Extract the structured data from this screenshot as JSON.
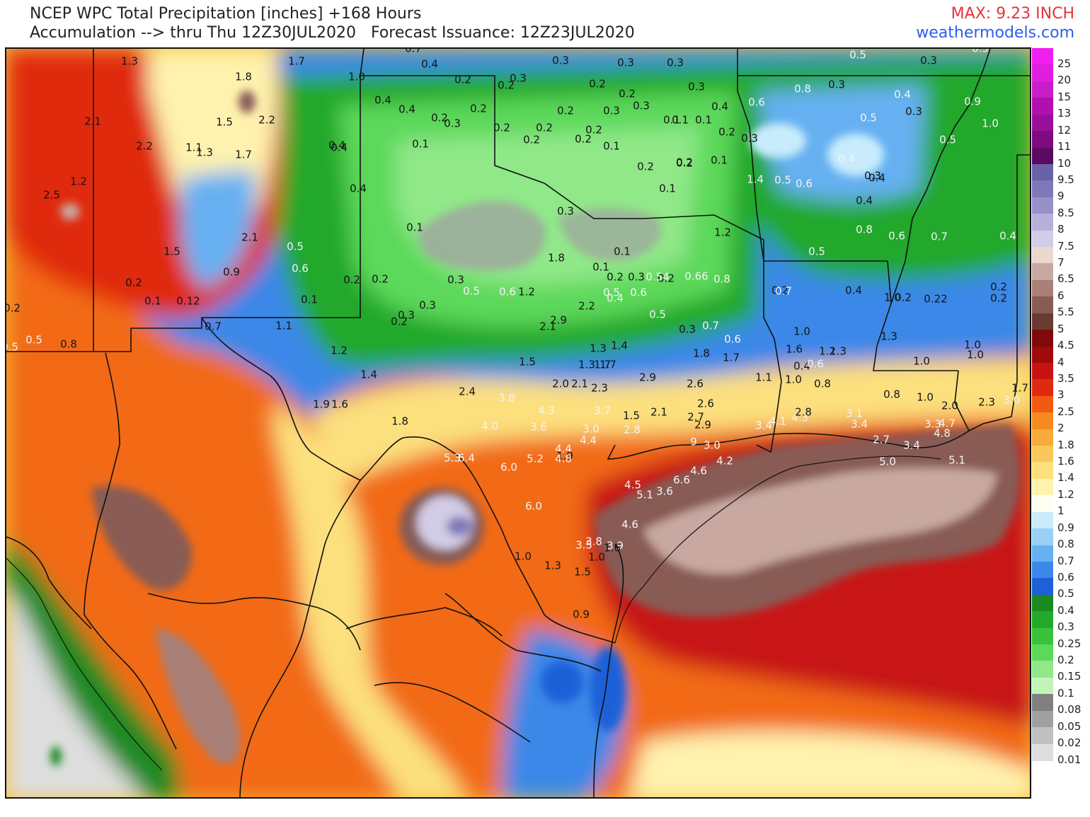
{
  "header": {
    "title_line1": "NCEP WPC Total Precipitation [inches] +168 Hours",
    "title_line2": "Accumulation --> thru Thu 12Z30JUL2020   Forecast Issuance: 12Z23JUL2020",
    "max": "MAX: 9.23 INCH",
    "site": "weathermodels.com"
  },
  "colorbar": {
    "levels": [
      "25",
      "20",
      "15",
      "13",
      "12",
      "11",
      "10",
      "9.5",
      "9",
      "8.5",
      "8",
      "7.5",
      "7",
      "6.5",
      "6",
      "5.5",
      "5",
      "4.5",
      "4",
      "3.5",
      "3",
      "2.5",
      "2",
      "1.8",
      "1.6",
      "1.4",
      "1.2",
      "1",
      "0.9",
      "0.8",
      "0.7",
      "0.6",
      "0.5",
      "0.4",
      "0.3",
      "0.25",
      "0.2",
      "0.15",
      "0.1",
      "0.08",
      "0.05",
      "0.02",
      "0.01"
    ],
    "colors": [
      "#f01ef0",
      "#e01ee0",
      "#c81ec8",
      "#b010b0",
      "#98109a",
      "#800a80",
      "#5a0a60",
      "#6a62a8",
      "#7e78b8",
      "#9890c8",
      "#b6b0da",
      "#d2cce6",
      "#ead8d0",
      "#c8a8a0",
      "#a88078",
      "#885c54",
      "#6a3a32",
      "#7e0a0a",
      "#a00a0a",
      "#c81212",
      "#e02a10",
      "#f25a10",
      "#f68a1e",
      "#f8aa3a",
      "#fac85a",
      "#fce07e",
      "#fff2ae",
      "#fffff0",
      "#c8ecfc",
      "#98d0f8",
      "#66b0f2",
      "#3a88e8",
      "#1e60d8",
      "#1a8a20",
      "#24a82a",
      "#38c23a",
      "#5cd85a",
      "#90e888",
      "#c2f4b8",
      "#808080",
      "#a0a0a0",
      "#c0c0c0",
      "#dedede"
    ]
  },
  "precip_labels": [
    {
      "t": "1.3",
      "c": "dark"
    },
    {
      "t": "1.8",
      "c": "dark"
    },
    {
      "t": "1.7",
      "c": "dark"
    },
    {
      "t": "0.7",
      "c": "dark"
    },
    {
      "t": "1.0",
      "c": "dark"
    },
    {
      "t": "0.4",
      "c": "dark"
    },
    {
      "t": "0.2",
      "c": "dark"
    },
    {
      "t": "0.3",
      "c": "dark"
    },
    {
      "t": "0.2",
      "c": "dark"
    },
    {
      "t": "0.3",
      "c": "dark"
    },
    {
      "t": "0.2",
      "c": "dark"
    },
    {
      "t": "0.3",
      "c": "dark"
    },
    {
      "t": "0.3",
      "c": "dark"
    },
    {
      "t": "0.3",
      "c": "dark"
    },
    {
      "t": "0.5",
      "c": "light"
    },
    {
      "t": "0.3",
      "c": "dark"
    },
    {
      "t": "0.5",
      "c": "light"
    },
    {
      "t": "2.1",
      "c": "dark"
    },
    {
      "t": "1.5",
      "c": "dark"
    },
    {
      "t": "2.2",
      "c": "dark"
    },
    {
      "t": "2.2",
      "c": "dark"
    },
    {
      "t": "1.1",
      "c": "dark"
    },
    {
      "t": "1.3",
      "c": "dark"
    },
    {
      "t": "1.7",
      "c": "dark"
    },
    {
      "t": "0.4",
      "c": "dark"
    },
    {
      "t": "0.4",
      "c": "dark"
    },
    {
      "t": "0.2",
      "c": "dark"
    },
    {
      "t": "0.3",
      "c": "dark"
    },
    {
      "t": "0.2",
      "c": "dark"
    },
    {
      "t": "0.1",
      "c": "dark"
    },
    {
      "t": "0.2",
      "c": "dark"
    },
    {
      "t": "0.2",
      "c": "dark"
    },
    {
      "t": "0.2",
      "c": "dark"
    },
    {
      "t": "0.3",
      "c": "dark"
    },
    {
      "t": "0.2",
      "c": "dark"
    },
    {
      "t": "0.3",
      "c": "dark"
    },
    {
      "t": "0.1",
      "c": "dark"
    },
    {
      "t": "0.1",
      "c": "dark"
    },
    {
      "t": "0.4",
      "c": "dark"
    },
    {
      "t": "0.2",
      "c": "dark"
    },
    {
      "t": "0.3",
      "c": "dark"
    },
    {
      "t": "0.6",
      "c": "light"
    },
    {
      "t": "0.8",
      "c": "light"
    },
    {
      "t": "0.3",
      "c": "dark"
    },
    {
      "t": "0.4",
      "c": "light"
    },
    {
      "t": "0.9",
      "c": "light"
    },
    {
      "t": "1.0",
      "c": "light"
    },
    {
      "t": "0.3",
      "c": "dark"
    },
    {
      "t": "0.5",
      "c": "light"
    },
    {
      "t": "0.5",
      "c": "light"
    },
    {
      "t": "2.5",
      "c": "dark"
    },
    {
      "t": "1.2",
      "c": "dark"
    },
    {
      "t": "0.4",
      "c": "dark"
    },
    {
      "t": "0.4",
      "c": "dark"
    },
    {
      "t": "0.2",
      "c": "dark"
    },
    {
      "t": "0.1",
      "c": "dark"
    },
    {
      "t": "0.2",
      "c": "dark"
    },
    {
      "t": "0.1",
      "c": "dark"
    },
    {
      "t": "0.1",
      "c": "dark"
    },
    {
      "t": "0.2",
      "c": "dark"
    },
    {
      "t": "0.1",
      "c": "dark"
    },
    {
      "t": "0.2",
      "c": "dark"
    },
    {
      "t": "1.4",
      "c": "light"
    },
    {
      "t": "0.5",
      "c": "light"
    },
    {
      "t": "0.6",
      "c": "light"
    },
    {
      "t": "0.4",
      "c": "light"
    },
    {
      "t": "0.3",
      "c": "dark"
    },
    {
      "t": "0.4",
      "c": "dark"
    },
    {
      "t": "0.4",
      "c": "dark"
    },
    {
      "t": "2.1",
      "c": "dark"
    },
    {
      "t": "0.1",
      "c": "dark"
    },
    {
      "t": "0.3",
      "c": "dark"
    },
    {
      "t": "0.4",
      "c": "dark"
    },
    {
      "t": "0.2",
      "c": "dark"
    },
    {
      "t": "0.2",
      "c": "dark"
    },
    {
      "t": "0.8",
      "c": "light"
    },
    {
      "t": "0.6",
      "c": "light"
    },
    {
      "t": "0.7",
      "c": "light"
    },
    {
      "t": "0.4",
      "c": "light"
    },
    {
      "t": "1.5",
      "c": "dark"
    },
    {
      "t": "0.5",
      "c": "light"
    },
    {
      "t": "0.6",
      "c": "light"
    },
    {
      "t": "0.9",
      "c": "dark"
    },
    {
      "t": "0.2",
      "c": "dark"
    },
    {
      "t": "0.2",
      "c": "dark"
    },
    {
      "t": "0.3",
      "c": "dark"
    },
    {
      "t": "0.3",
      "c": "dark"
    },
    {
      "t": "0.5",
      "c": "light"
    },
    {
      "t": "0.6",
      "c": "light"
    },
    {
      "t": "1.2",
      "c": "dark"
    },
    {
      "t": "1.8",
      "c": "dark"
    },
    {
      "t": "1.2",
      "c": "dark"
    },
    {
      "t": "0.5",
      "c": "light"
    },
    {
      "t": "0.4",
      "c": "dark"
    },
    {
      "t": "0.2",
      "c": "dark"
    },
    {
      "t": "0.2",
      "c": "dark"
    },
    {
      "t": "0.1",
      "c": "dark"
    },
    {
      "t": "0.12",
      "c": "dark"
    },
    {
      "t": "0.1",
      "c": "dark"
    },
    {
      "t": "0.1",
      "c": "dark"
    },
    {
      "t": "0.2",
      "c": "dark"
    },
    {
      "t": "0.1",
      "c": "dark"
    },
    {
      "t": "0.2",
      "c": "dark"
    },
    {
      "t": "0.3",
      "c": "dark"
    },
    {
      "t": "0.54",
      "c": "light"
    },
    {
      "t": "0.5",
      "c": "light"
    },
    {
      "t": "0.6",
      "c": "light"
    },
    {
      "t": "0.66",
      "c": "light"
    },
    {
      "t": "0.8",
      "c": "light"
    },
    {
      "t": "0.7",
      "c": "light"
    },
    {
      "t": "1.0",
      "c": "dark"
    },
    {
      "t": "0.2",
      "c": "dark"
    },
    {
      "t": "0.22",
      "c": "dark"
    },
    {
      "t": "0.2",
      "c": "dark"
    },
    {
      "t": "0.2",
      "c": "dark"
    },
    {
      "t": "0.2",
      "c": "dark"
    },
    {
      "t": "0.3",
      "c": "dark"
    },
    {
      "t": "0.2",
      "c": "dark"
    },
    {
      "t": "2.1",
      "c": "dark"
    },
    {
      "t": "2.9",
      "c": "dark"
    },
    {
      "t": "2.2",
      "c": "dark"
    },
    {
      "t": "0.4",
      "c": "light"
    },
    {
      "t": "0.5",
      "c": "light"
    },
    {
      "t": "0.5",
      "c": "light"
    },
    {
      "t": "0.5",
      "c": "light"
    },
    {
      "t": "0.8",
      "c": "dark"
    },
    {
      "t": "0.7",
      "c": "dark"
    },
    {
      "t": "1.1",
      "c": "dark"
    },
    {
      "t": "0.3",
      "c": "dark"
    },
    {
      "t": "0.7",
      "c": "light"
    },
    {
      "t": "0.6",
      "c": "light"
    },
    {
      "t": "1.0",
      "c": "dark"
    },
    {
      "t": "1.3",
      "c": "dark"
    },
    {
      "t": "1.2",
      "c": "dark"
    },
    {
      "t": "1.3",
      "c": "dark"
    },
    {
      "t": "1.4",
      "c": "dark"
    },
    {
      "t": "1.8",
      "c": "dark"
    },
    {
      "t": "1.7",
      "c": "dark"
    },
    {
      "t": "1.6",
      "c": "dark"
    },
    {
      "t": "1.2",
      "c": "dark"
    },
    {
      "t": "1.3",
      "c": "dark"
    },
    {
      "t": "0.4",
      "c": "dark"
    },
    {
      "t": "0.6",
      "c": "light"
    },
    {
      "t": "1.0",
      "c": "dark"
    },
    {
      "t": "1.0",
      "c": "dark"
    },
    {
      "t": "1.0",
      "c": "dark"
    },
    {
      "t": "1.4",
      "c": "dark"
    },
    {
      "t": "1.5",
      "c": "dark"
    },
    {
      "t": "1.3",
      "c": "dark"
    },
    {
      "t": "1.7",
      "c": "dark"
    },
    {
      "t": "1.7",
      "c": "dark"
    },
    {
      "t": "2.0",
      "c": "dark"
    },
    {
      "t": "2.1",
      "c": "dark"
    },
    {
      "t": "2.3",
      "c": "dark"
    },
    {
      "t": "2.9",
      "c": "dark"
    },
    {
      "t": "2.6",
      "c": "dark"
    },
    {
      "t": "1.1",
      "c": "dark"
    },
    {
      "t": "1.0",
      "c": "dark"
    },
    {
      "t": "0.8",
      "c": "dark"
    },
    {
      "t": "0.8",
      "c": "dark"
    },
    {
      "t": "1.0",
      "c": "dark"
    },
    {
      "t": "1.7",
      "c": "dark"
    },
    {
      "t": "1.9",
      "c": "dark"
    },
    {
      "t": "1.6",
      "c": "dark"
    },
    {
      "t": "1.8",
      "c": "dark"
    },
    {
      "t": "2.4",
      "c": "dark"
    },
    {
      "t": "3.8",
      "c": "light"
    },
    {
      "t": "4.3",
      "c": "light"
    },
    {
      "t": "3.7",
      "c": "light"
    },
    {
      "t": "1.5",
      "c": "dark"
    },
    {
      "t": "2.1",
      "c": "dark"
    },
    {
      "t": "2.6",
      "c": "dark"
    },
    {
      "t": "2.0",
      "c": "dark"
    },
    {
      "t": "2.3",
      "c": "dark"
    },
    {
      "t": "3.0",
      "c": "light"
    },
    {
      "t": "4.0",
      "c": "light"
    },
    {
      "t": "3.6",
      "c": "light"
    },
    {
      "t": "3.0",
      "c": "light"
    },
    {
      "t": "2.8",
      "c": "light"
    },
    {
      "t": "2.7",
      "c": "dark"
    },
    {
      "t": "2.9",
      "c": "dark"
    },
    {
      "t": "3.4",
      "c": "light"
    },
    {
      "t": "4.1",
      "c": "light"
    },
    {
      "t": "4.3",
      "c": "light"
    },
    {
      "t": "2.8",
      "c": "dark"
    },
    {
      "t": "3.1",
      "c": "light"
    },
    {
      "t": "3.4",
      "c": "light"
    },
    {
      "t": "3.3",
      "c": "light"
    },
    {
      "t": "4.7",
      "c": "light"
    },
    {
      "t": "4.8",
      "c": "light"
    },
    {
      "t": "4.4",
      "c": "light"
    },
    {
      "t": "4.4",
      "c": "light"
    },
    {
      "t": "1.9",
      "c": "dark"
    },
    {
      "t": "9",
      "c": "light"
    },
    {
      "t": "3.0",
      "c": "light"
    },
    {
      "t": "2.7",
      "c": "light"
    },
    {
      "t": "3.4",
      "c": "light"
    },
    {
      "t": "5.3",
      "c": "light"
    },
    {
      "t": "6.4",
      "c": "light"
    },
    {
      "t": "6.0",
      "c": "light"
    },
    {
      "t": "5.2",
      "c": "light"
    },
    {
      "t": "4.8",
      "c": "light"
    },
    {
      "t": "4.2",
      "c": "light"
    },
    {
      "t": "5.0",
      "c": "light"
    },
    {
      "t": "5.1",
      "c": "light"
    },
    {
      "t": "4.6",
      "c": "light"
    },
    {
      "t": "6.6",
      "c": "light"
    },
    {
      "t": "4.5",
      "c": "light"
    },
    {
      "t": "5.1",
      "c": "light"
    },
    {
      "t": "3.6",
      "c": "light"
    },
    {
      "t": "6.0",
      "c": "light"
    },
    {
      "t": "4.6",
      "c": "light"
    },
    {
      "t": "3.5",
      "c": "light"
    },
    {
      "t": "3.8",
      "c": "light"
    },
    {
      "t": "3.9",
      "c": "light"
    },
    {
      "t": "1.6",
      "c": "dark"
    },
    {
      "t": "1.0",
      "c": "dark"
    },
    {
      "t": "1.0",
      "c": "dark"
    },
    {
      "t": "1.3",
      "c": "dark"
    },
    {
      "t": "1.5",
      "c": "dark"
    },
    {
      "t": "0.9",
      "c": "dark"
    }
  ]
}
